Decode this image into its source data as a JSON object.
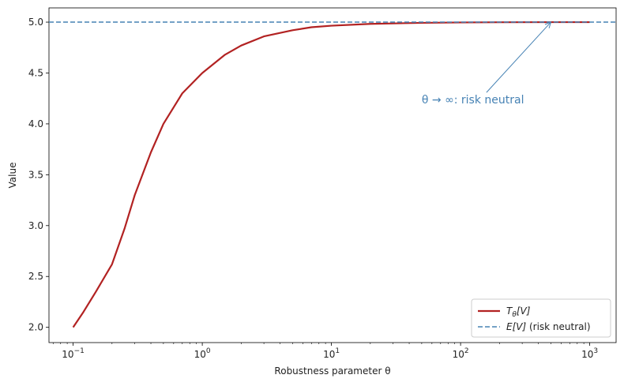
{
  "chart_data": {
    "type": "line",
    "xlabel": "Robustness parameter θ",
    "ylabel": "Value",
    "x_scale": "log",
    "xlim": [
      0.065,
      1600
    ],
    "ylim": [
      1.85,
      5.14
    ],
    "x_ticks": [
      {
        "value": 0.1,
        "base": "10",
        "exp": "−1"
      },
      {
        "value": 1,
        "base": "10",
        "exp": "0"
      },
      {
        "value": 10,
        "base": "10",
        "exp": "1"
      },
      {
        "value": 100,
        "base": "10",
        "exp": "2"
      },
      {
        "value": 1000,
        "base": "10",
        "exp": "3"
      }
    ],
    "y_ticks": [
      {
        "value": 2.0,
        "label": "2.0"
      },
      {
        "value": 2.5,
        "label": "2.5"
      },
      {
        "value": 3.0,
        "label": "3.0"
      },
      {
        "value": 3.5,
        "label": "3.5"
      },
      {
        "value": 4.0,
        "label": "4.0"
      },
      {
        "value": 4.5,
        "label": "4.5"
      },
      {
        "value": 5.0,
        "label": "5.0"
      }
    ],
    "grid": false,
    "series": [
      {
        "name": "Tθ[V]",
        "name_main": "T",
        "name_sub": "θ",
        "name_rest": "[V]",
        "style": "solid",
        "color": "#b22222",
        "x": [
          0.1,
          0.12,
          0.15,
          0.2,
          0.25,
          0.3,
          0.4,
          0.5,
          0.7,
          1,
          1.5,
          2,
          3,
          5,
          7,
          10,
          20,
          50,
          100,
          200,
          500,
          1000
        ],
        "y": [
          2.0,
          2.15,
          2.35,
          2.62,
          2.97,
          3.3,
          3.72,
          4.0,
          4.3,
          4.5,
          4.68,
          4.77,
          4.86,
          4.92,
          4.95,
          4.965,
          4.983,
          4.993,
          4.997,
          4.999,
          5.0,
          5.0
        ]
      },
      {
        "name": "E[V] (risk neutral)",
        "name_main": "E[V]",
        "name_rest": " (risk neutral)",
        "style": "dashed",
        "color": "#4682b4",
        "y_constant": 5.0
      }
    ],
    "legend": {
      "placement": "bottom-right"
    },
    "annotation": {
      "text": "θ → ∞: risk neutral",
      "text_x": 50,
      "text_y": 4.2,
      "arrow_to_x": 500,
      "arrow_to_y": 5.0,
      "color": "#4682b4"
    }
  }
}
